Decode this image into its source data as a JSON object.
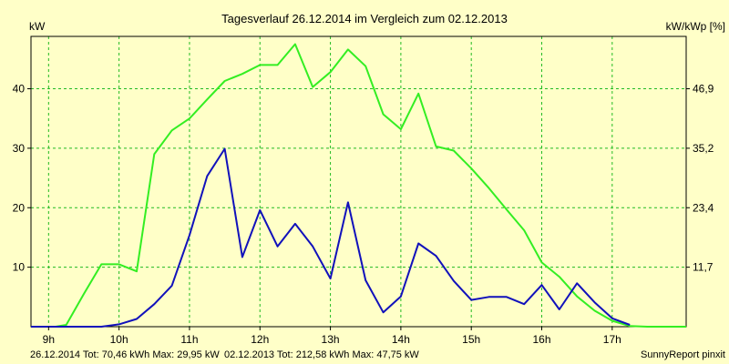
{
  "chart_data": {
    "type": "line",
    "title": "Tagesverlauf 26.12.2014 im Vergleich zum 02.12.2013",
    "ylabel_left": "kW",
    "ylabel_right": "kW/kWp [%]",
    "xticks": [
      "9h",
      "10h",
      "11h",
      "12h",
      "13h",
      "14h",
      "15h",
      "16h",
      "17h"
    ],
    "xlim": [
      8.75,
      18.05
    ],
    "ylim": [
      0,
      48.8
    ],
    "yticks_left": [
      10,
      20,
      30,
      40
    ],
    "yticks_left_labels": [
      "10",
      "20",
      "30",
      "40"
    ],
    "yticks_right": [
      8.0,
      16.0,
      24.0,
      32.0
    ],
    "yticks_right_labels": [
      "11,7",
      "23,4",
      "35,2",
      "46,9"
    ],
    "grid": true,
    "background": "#ffffc8",
    "series": [
      {
        "name": "02.12.2013",
        "color": "#33ee22",
        "x": [
          8.75,
          9.1,
          9.25,
          9.5,
          9.75,
          10.0,
          10.25,
          10.5,
          10.75,
          11.0,
          11.25,
          11.5,
          11.75,
          12.0,
          12.25,
          12.5,
          12.75,
          13.0,
          13.25,
          13.5,
          13.75,
          14.0,
          14.25,
          14.5,
          14.75,
          15.0,
          15.25,
          15.5,
          15.75,
          16.0,
          16.25,
          16.5,
          16.75,
          17.0,
          17.25,
          17.5,
          17.75,
          18.05
        ],
        "y": [
          0,
          0,
          0.3,
          5.5,
          10.5,
          10.5,
          9.3,
          29.0,
          33.0,
          35.0,
          38.2,
          41.3,
          42.5,
          44.0,
          44.0,
          47.5,
          40.3,
          42.8,
          46.6,
          43.8,
          35.7,
          33.2,
          39.2,
          30.3,
          29.6,
          26.6,
          23.3,
          19.7,
          16.2,
          10.8,
          8.4,
          5.1,
          2.7,
          1.0,
          0.1,
          0,
          0,
          0
        ]
      },
      {
        "name": "26.12.2014",
        "color": "#1111bb",
        "x": [
          8.75,
          9.75,
          10.0,
          10.25,
          10.5,
          10.75,
          11.0,
          11.25,
          11.5,
          11.75,
          12.0,
          12.25,
          12.5,
          12.75,
          13.0,
          13.25,
          13.5,
          13.75,
          14.0,
          14.25,
          14.5,
          14.75,
          15.0,
          15.25,
          15.5,
          15.75,
          16.0,
          16.25,
          16.5,
          16.75,
          17.0,
          17.25
        ],
        "y": [
          0,
          0,
          0.4,
          1.3,
          3.8,
          6.9,
          15.4,
          25.3,
          29.9,
          11.7,
          19.6,
          13.5,
          17.3,
          13.5,
          8.1,
          20.9,
          7.8,
          2.4,
          5.1,
          14.0,
          11.9,
          7.7,
          4.5,
          5.0,
          5.0,
          3.8,
          7.0,
          2.9,
          7.3,
          4.1,
          1.4,
          0.3
        ]
      }
    ],
    "legend": [
      {
        "text": "26.12.2014 Tot: 70,46 kWh Max: 29,95 kW",
        "color": "#1111bb"
      },
      {
        "text": "02.12.2013 Tot: 212,58 kWh Max: 47,75 kW",
        "color": "#33ee22"
      }
    ],
    "legend_position": "bottom-left",
    "credit": "SunnyReport pinxit"
  }
}
